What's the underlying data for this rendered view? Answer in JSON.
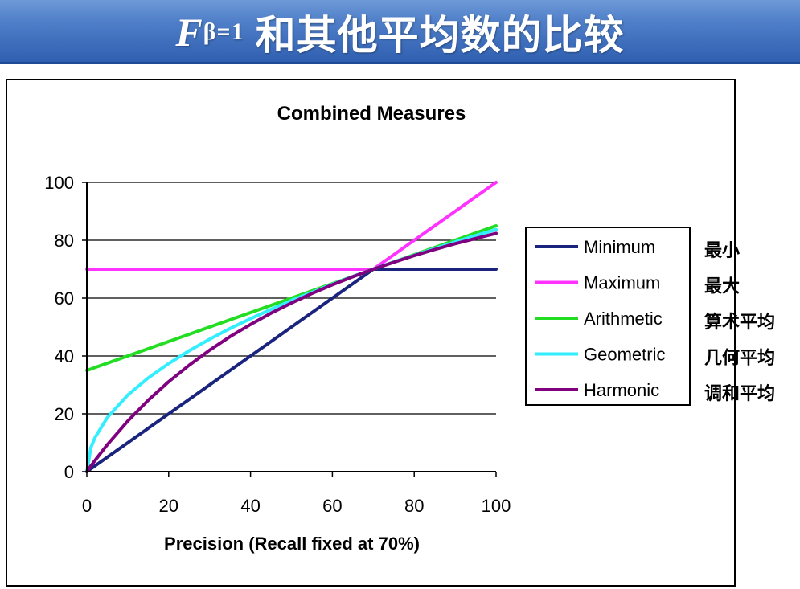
{
  "slide": {
    "title_symbol": "F",
    "title_subscript": "β=1",
    "title_text": "和其他平均数的比较"
  },
  "colors": {
    "title_bar": "#4f7fc8",
    "Minimum": "#1a237e",
    "Maximum": "#ff33ff",
    "Arithmetic": "#22dd22",
    "Geometric": "#33eeff",
    "Harmonic": "#800080"
  },
  "chart_data": {
    "type": "line",
    "title": "Combined Measures",
    "xlabel": "Precision (Recall fixed at 70%)",
    "ylabel": "",
    "xlim": [
      0,
      100
    ],
    "ylim": [
      0,
      100
    ],
    "xticks": [
      0,
      20,
      40,
      60,
      80,
      100
    ],
    "yticks": [
      0,
      20,
      40,
      60,
      80,
      100
    ],
    "grid": "horizontal",
    "legend_position": "right",
    "x": [
      0,
      1,
      2,
      5,
      10,
      15,
      20,
      25,
      30,
      35,
      40,
      45,
      50,
      55,
      60,
      65,
      70,
      75,
      80,
      85,
      90,
      95,
      100
    ],
    "series": [
      {
        "name": "Minimum",
        "values": [
          0,
          1,
          2,
          5,
          10,
          15,
          20,
          25,
          30,
          35,
          40,
          45,
          50,
          55,
          60,
          65,
          70,
          70,
          70,
          70,
          70,
          70,
          70
        ]
      },
      {
        "name": "Maximum",
        "values": [
          70,
          70,
          70,
          70,
          70,
          70,
          70,
          70,
          70,
          70,
          70,
          70,
          70,
          70,
          70,
          70,
          70,
          75,
          80,
          85,
          90,
          95,
          100
        ]
      },
      {
        "name": "Arithmetic",
        "values": [
          35,
          35.5,
          36,
          37.5,
          40,
          42.5,
          45,
          47.5,
          50,
          52.5,
          55,
          57.5,
          60,
          62.5,
          65,
          67.5,
          70,
          72.5,
          75,
          77.5,
          80,
          82.5,
          85
        ]
      },
      {
        "name": "Geometric",
        "values": [
          0,
          8.4,
          11.8,
          18.7,
          26.5,
          32.4,
          37.4,
          41.8,
          45.8,
          49.5,
          52.9,
          56.1,
          59.2,
          62,
          64.8,
          67.5,
          70,
          72.5,
          74.8,
          77.1,
          79.4,
          81.6,
          83.7
        ]
      },
      {
        "name": "Harmonic",
        "values": [
          0,
          2,
          3.9,
          9.3,
          17.5,
          24.7,
          31.1,
          36.8,
          42,
          46.7,
          50.9,
          54.8,
          58.3,
          61.6,
          64.6,
          67.4,
          70,
          72.4,
          74.7,
          76.8,
          78.8,
          80.6,
          82.4
        ]
      }
    ]
  },
  "legend": {
    "items": [
      {
        "label": "Minimum",
        "zh": "最小"
      },
      {
        "label": "Maximum",
        "zh": "最大"
      },
      {
        "label": "Arithmetic",
        "zh": "算术平均"
      },
      {
        "label": "Geometric",
        "zh": "几何平均"
      },
      {
        "label": "Harmonic",
        "zh": "调和平均"
      }
    ]
  }
}
